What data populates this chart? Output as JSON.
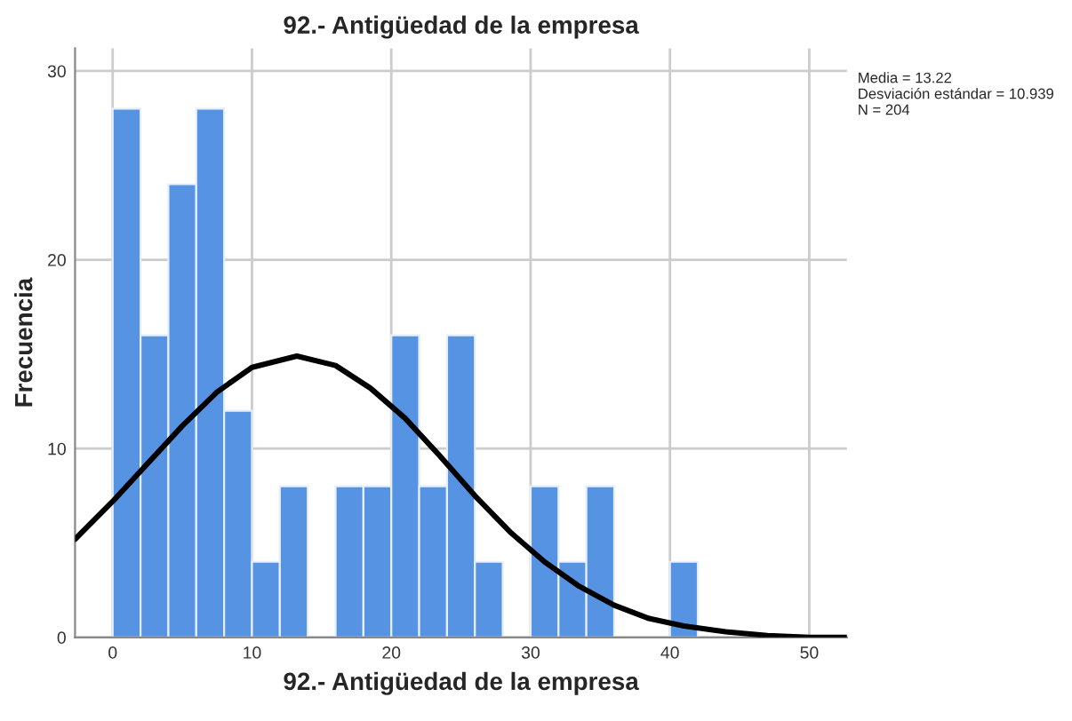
{
  "chart_data": {
    "type": "histogram",
    "title": "92.- Antigüedad de la empresa",
    "xlabel": "92.- Antigüedad de la empresa",
    "ylabel": "Frecuencia",
    "bins": [
      0,
      2,
      4,
      6,
      8,
      10,
      12,
      14,
      16,
      18,
      20,
      22,
      24,
      26,
      28,
      30,
      32,
      34,
      36,
      38,
      40,
      42
    ],
    "values": [
      28,
      16,
      24,
      28,
      12,
      4,
      8,
      0,
      8,
      8,
      16,
      8,
      16,
      4,
      0,
      8,
      4,
      8,
      0,
      0,
      4
    ],
    "color": "#5694e3",
    "series": [
      {
        "type": "line",
        "color": "#000000",
        "x": [
          -2.7,
          0,
          2.5,
          5,
          7.5,
          10,
          13.22,
          16,
          18.5,
          21,
          23.5,
          26,
          28.5,
          31,
          33.5,
          36,
          38.5,
          41,
          44,
          47,
          50,
          52.7
        ],
        "values": [
          5.2,
          7.2,
          9.2,
          11.2,
          13.0,
          14.3,
          14.9,
          14.4,
          13.2,
          11.6,
          9.6,
          7.5,
          5.6,
          4.0,
          2.7,
          1.7,
          1.0,
          0.6,
          0.3,
          0.1,
          0.0,
          0.0
        ]
      }
    ],
    "xlim": [
      -2.7,
      52.7
    ],
    "ylim": [
      0,
      31.2
    ],
    "xticks": [
      0,
      10,
      20,
      30,
      40,
      50
    ],
    "yticks": [
      0,
      10,
      20,
      30
    ],
    "grid": true,
    "annotations": [
      "Media = 13.22\nDesviación estándar = 10.939\nN = 204"
    ]
  }
}
